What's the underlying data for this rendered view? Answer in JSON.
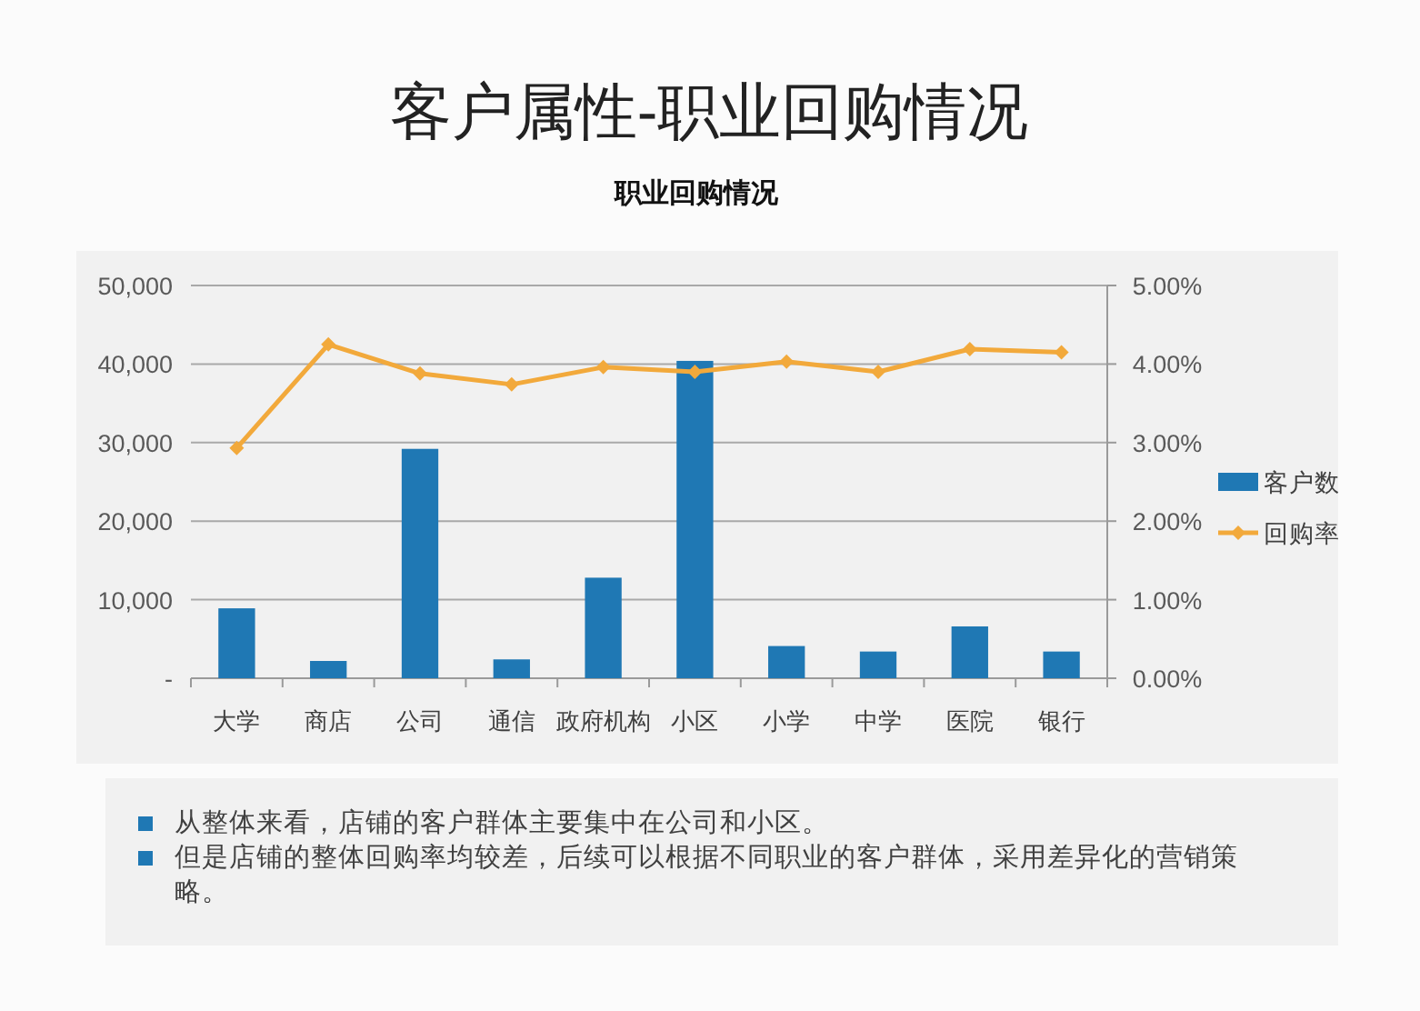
{
  "chart_data": {
    "type": "bar",
    "title": "客户属性-职业回购情况",
    "subtitle": "职业回购情况",
    "categories": [
      "大学",
      "商店",
      "公司",
      "通信",
      "政府机构",
      "小区",
      "小学",
      "中学",
      "医院",
      "银行"
    ],
    "series": [
      {
        "name": "客户数",
        "color": "#1f78b4",
        "values": [
          8900,
          2200,
          29200,
          2400,
          12800,
          40400,
          4100,
          3400,
          6600,
          3400
        ]
      },
      {
        "name": "回购率",
        "type": "line",
        "axis": "y2",
        "color": "#f2a93b",
        "values": [
          2.93,
          4.25,
          3.88,
          3.74,
          3.96,
          3.9,
          4.03,
          3.9,
          4.19,
          4.15
        ]
      }
    ],
    "ylim": [
      0,
      50000
    ],
    "yticks": [
      {
        "value": 0,
        "label": "-"
      },
      {
        "value": 10000,
        "label": "10,000"
      },
      {
        "value": 20000,
        "label": "20,000"
      },
      {
        "value": 30000,
        "label": "30,000"
      },
      {
        "value": 40000,
        "label": "40,000"
      },
      {
        "value": 50000,
        "label": "50,000"
      }
    ],
    "y2lim": [
      0,
      5
    ],
    "y2ticks": [
      {
        "value": 0,
        "label": "0.00%"
      },
      {
        "value": 1,
        "label": "1.00%"
      },
      {
        "value": 2,
        "label": "2.00%"
      },
      {
        "value": 3,
        "label": "3.00%"
      },
      {
        "value": 4,
        "label": "4.00%"
      },
      {
        "value": 5,
        "label": "5.00%"
      }
    ],
    "grid": "y",
    "legend": "right",
    "marker": "diamond",
    "annotations": [
      "从整体来看，店铺的客户群体主要集中在公司和小区。",
      "但是店铺的整体回购率均较差，后续可以根据不同职业的客户群体，采用差异化的营销策略。"
    ]
  }
}
